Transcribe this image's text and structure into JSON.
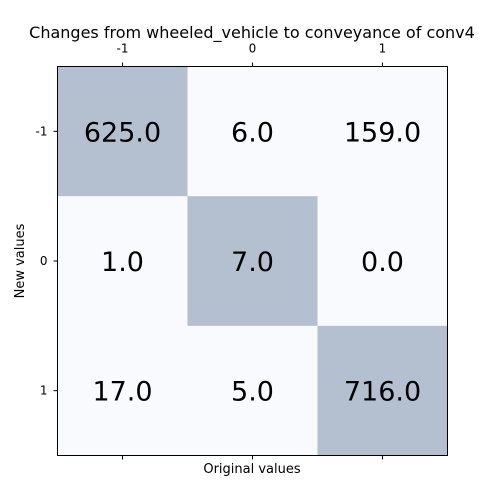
{
  "chart_data": {
    "type": "heatmap",
    "title": "Changes from wheeled_vehicle to conveyance of conv4",
    "xlabel": "Original values",
    "ylabel": "New values",
    "x_categories": [
      "-1",
      "0",
      "1"
    ],
    "y_categories": [
      "-1",
      "0",
      "1"
    ],
    "x_tick_position": "top",
    "values": [
      [
        625.0,
        6.0,
        159.0
      ],
      [
        1.0,
        7.0,
        0.0
      ],
      [
        17.0,
        5.0,
        716.0
      ]
    ],
    "cell_labels": [
      [
        "625.0",
        "6.0",
        "159.0"
      ],
      [
        "1.0",
        "7.0",
        "0.0"
      ],
      [
        "17.0",
        "5.0",
        "716.0"
      ]
    ],
    "colors": {
      "diagonal": "#b4bfd0",
      "off_diagonal": "#f8fafe",
      "axis": "#000000",
      "text": "#000000"
    },
    "grid": false,
    "legend": "none"
  }
}
